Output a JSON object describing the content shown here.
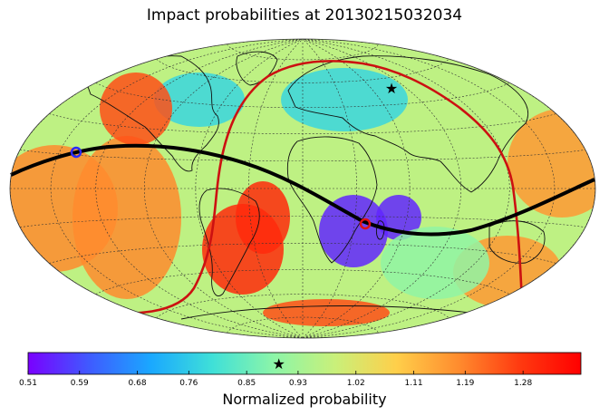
{
  "chart_data": {
    "type": "heatmap",
    "title": "Impact probabilities at 20130215032034",
    "colorbar": {
      "label": "Normalized probability",
      "ticks": [
        "0.51",
        "0.59",
        "0.68",
        "0.76",
        "0.85",
        "0.93",
        "1.02",
        "1.11",
        "1.19",
        "1.28"
      ],
      "range": [
        0.51,
        1.37
      ],
      "colormap": "rainbow",
      "star_value": 0.9,
      "colors": [
        "#7a00ff",
        "#3f5bff",
        "#1aa8ff",
        "#3fe0d8",
        "#8cf5a8",
        "#c9f07a",
        "#ffcf4a",
        "#ff8c2e",
        "#ff3a10",
        "#ff0000"
      ]
    },
    "grid": true,
    "projection": "hammer",
    "markers": {
      "star_location": "north-central Asia",
      "blue_circle": "western Pacific / central Pacific on black track",
      "red_circle": "Madagascar region on black track"
    },
    "tracks": [
      {
        "color": "#000000",
        "kind": "ground-track"
      },
      {
        "color": "#cc1111",
        "kind": "terminator-boundary"
      }
    ],
    "regions": [
      {
        "name": "Madagascar minimum",
        "value": 0.55
      },
      {
        "name": "South Atlantic maximum",
        "value": 1.3
      },
      {
        "name": "Eastern Pacific",
        "value": 1.18
      },
      {
        "name": "Western Pacific",
        "value": 1.16
      },
      {
        "name": "North Asia",
        "value": 0.78
      },
      {
        "name": "Antarctica",
        "value": 1.25
      },
      {
        "name": "Indian Ocean south",
        "value": 0.9
      },
      {
        "name": "Background",
        "value": 0.97
      }
    ]
  }
}
